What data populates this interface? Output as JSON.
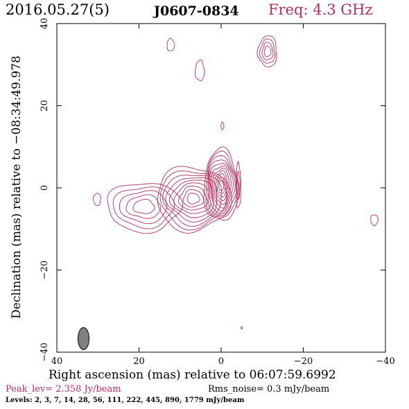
{
  "header": {
    "date": "2016.05.27(5)",
    "source": "J0607-0834",
    "freq": "Freq: 4.3 GHz"
  },
  "chart_data": {
    "type": "contour",
    "xlabel": "Right ascension (mas) relative to 06:07:59.6992",
    "ylabel": "Declination (mas) relative to −08:34:49.978",
    "xlim": [
      40,
      -40
    ],
    "ylim": [
      -40,
      40
    ],
    "xticks": [
      40,
      20,
      0,
      -20,
      -40
    ],
    "yticks": [
      -40,
      -20,
      0,
      20,
      40
    ],
    "xtick_labels": [
      "40",
      "20",
      "0",
      "−20",
      "−40"
    ],
    "ytick_labels": [
      "−40",
      "−20",
      "0",
      "20",
      "40"
    ],
    "peak_level": "Peak_lev=  2.358 Jy/beam",
    "rms_noise": "Rms_noise=  0.3 mJy/beam",
    "levels_text": "Levels:   2,   3,   7,  14,  28,  56, 111, 222, 445, 890, 1779 mJy/beam",
    "levels_mJy": [
      2,
      3,
      7,
      14,
      28,
      56,
      111,
      222,
      445,
      890,
      1779
    ],
    "beam": {
      "x": 33.5,
      "y": -36.7,
      "major": 5.4,
      "minor": 2.7,
      "pa_deg": 0
    },
    "components": [
      {
        "x": 0.0,
        "y": 0.5,
        "rx": 4.2,
        "ry": 8.8,
        "n": 11
      },
      {
        "x": -4.2,
        "y": 0.5,
        "rx": 0.6,
        "ry": 5.5,
        "n": 2
      },
      {
        "x": 6.8,
        "y": -2.6,
        "rx": 9.0,
        "ry": 7.8,
        "n": 9
      },
      {
        "x": 18.8,
        "y": -4.6,
        "rx": 9.0,
        "ry": 6.0,
        "n": 5
      },
      {
        "x": 30.2,
        "y": -2.8,
        "rx": 0.9,
        "ry": 1.5,
        "n": 1
      },
      {
        "x": -11.3,
        "y": 33.2,
        "rx": 2.3,
        "ry": 3.8,
        "n": 4
      },
      {
        "x": 5.2,
        "y": 28.5,
        "rx": 1.1,
        "ry": 2.5,
        "n": 1
      },
      {
        "x": 12.3,
        "y": 34.8,
        "rx": 0.9,
        "ry": 1.5,
        "n": 1
      },
      {
        "x": -0.3,
        "y": 15.1,
        "rx": 0.35,
        "ry": 0.9,
        "n": 1
      },
      {
        "x": -37.3,
        "y": -7.8,
        "rx": 0.9,
        "ry": 1.3,
        "n": 1
      },
      {
        "x": -5.0,
        "y": -34.1,
        "rx": 0.15,
        "ry": 0.3,
        "n": 1
      }
    ]
  },
  "colors": {
    "contour": "#b0305a",
    "axes": "#000000",
    "beam_fill": "#808080"
  }
}
